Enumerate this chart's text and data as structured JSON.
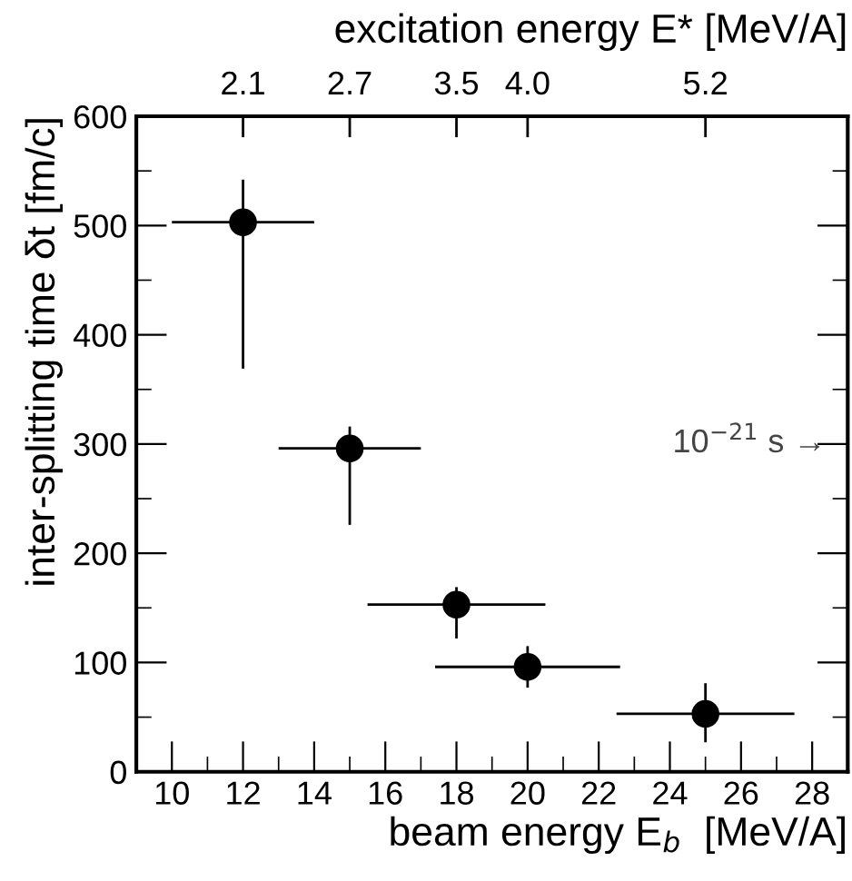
{
  "chart_data": {
    "type": "scatter",
    "xlabel": "beam energy E$_{b}$  [MeV/A]",
    "ylabel": "inter-splitting time δt [fm/c]",
    "x2label": "excitation energy E* [MeV/A]",
    "annotations": [
      "10$^{−21}$ s →",
      "2.1",
      "2.7",
      "3.5",
      "4.0",
      "5.2"
    ],
    "x": [
      12,
      15,
      18,
      20,
      25
    ],
    "series": [
      {
        "color": "#000000",
        "values": [
          503,
          296,
          153,
          96,
          53
        ],
        "errors": [
          [
            369,
            542
          ],
          [
            226,
            316
          ],
          [
            122,
            169
          ],
          [
            77,
            115
          ],
          [
            27,
            81
          ]
        ],
        "xerrors": [
          2,
          2,
          2.5,
          2.6,
          2.5
        ]
      }
    ],
    "marker": "circle",
    "xlim": [
      9,
      29
    ],
    "xticks": [
      10,
      12,
      14,
      16,
      18,
      20,
      22,
      24,
      26,
      28
    ],
    "ylim": [
      0,
      600
    ],
    "yticks": [
      0,
      100,
      200,
      300,
      400,
      500,
      600
    ],
    "grid": false,
    "legend": false
  }
}
